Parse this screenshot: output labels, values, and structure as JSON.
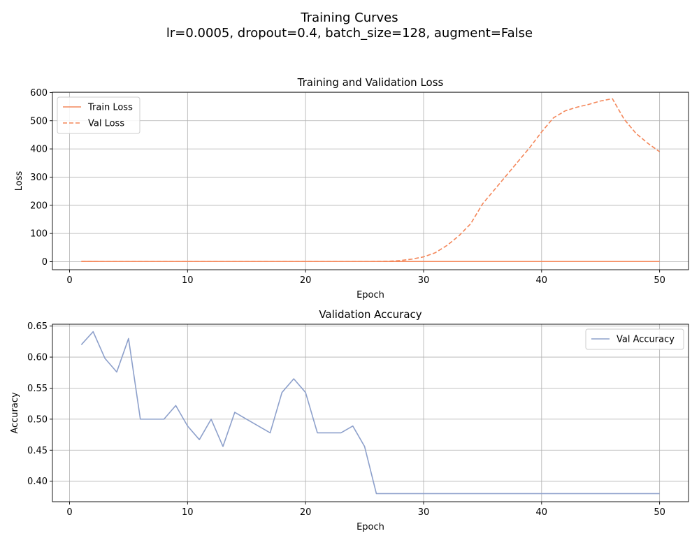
{
  "figure": {
    "suptitle_line1": "Training Curves",
    "suptitle_line2": "lr=0.0005, dropout=0.4, batch_size=128, augment=False"
  },
  "colors": {
    "loss": "#f4875a",
    "accuracy": "#8da0cb",
    "grid": "#b0b0b0"
  },
  "chart_data": [
    {
      "type": "line",
      "title": "Training and Validation Loss",
      "xlabel": "Epoch",
      "ylabel": "Loss",
      "xlim": [
        -1.45,
        52.45
      ],
      "ylim": [
        -28.5,
        601
      ],
      "xticks": [
        0,
        10,
        20,
        30,
        40,
        50
      ],
      "yticks": [
        0,
        100,
        200,
        300,
        400,
        500,
        600
      ],
      "grid": true,
      "legend_position": "upper-left",
      "x": [
        1,
        2,
        3,
        4,
        5,
        6,
        7,
        8,
        9,
        10,
        11,
        12,
        13,
        14,
        15,
        16,
        17,
        18,
        19,
        20,
        21,
        22,
        23,
        24,
        25,
        26,
        27,
        28,
        29,
        30,
        31,
        32,
        33,
        34,
        35,
        36,
        37,
        38,
        39,
        40,
        41,
        42,
        43,
        44,
        45,
        46,
        47,
        48,
        49,
        50
      ],
      "series": [
        {
          "name": "Train Loss",
          "style": "solid",
          "values": [
            0.68,
            0.66,
            0.65,
            0.65,
            0.64,
            0.64,
            0.64,
            0.63,
            0.63,
            0.63,
            0.63,
            0.63,
            0.63,
            0.63,
            0.63,
            0.63,
            0.63,
            0.63,
            0.63,
            0.63,
            0.63,
            0.63,
            0.63,
            0.63,
            0.63,
            0.63,
            0.63,
            0.63,
            0.63,
            0.63,
            0.63,
            0.63,
            0.63,
            0.63,
            0.63,
            0.63,
            0.63,
            0.63,
            0.63,
            0.63,
            0.63,
            0.63,
            0.63,
            0.63,
            0.63,
            0.63,
            0.63,
            0.63,
            0.63,
            0.63
          ]
        },
        {
          "name": "Val Loss",
          "style": "dashed",
          "values": [
            0.7,
            0.7,
            0.7,
            0.7,
            0.7,
            0.7,
            0.7,
            0.7,
            0.7,
            0.7,
            0.7,
            0.7,
            0.7,
            0.7,
            0.7,
            0.7,
            0.7,
            0.7,
            0.7,
            0.7,
            0.7,
            0.7,
            0.7,
            0.7,
            0.8,
            1.0,
            1.5,
            4,
            9,
            17,
            32,
            58,
            92,
            135,
            205,
            255,
            305,
            355,
            405,
            460,
            510,
            535,
            548,
            558,
            570,
            578,
            505,
            455,
            420,
            390
          ]
        }
      ]
    },
    {
      "type": "line",
      "title": "Validation Accuracy",
      "xlabel": "Epoch",
      "ylabel": "Accuracy",
      "xlim": [
        -1.45,
        52.45
      ],
      "ylim": [
        0.367,
        0.653
      ],
      "xticks": [
        0,
        10,
        20,
        30,
        40,
        50
      ],
      "yticks": [
        0.4,
        0.45,
        0.5,
        0.55,
        0.6,
        0.65
      ],
      "grid": true,
      "legend_position": "upper-right",
      "x": [
        1,
        2,
        3,
        4,
        5,
        6,
        7,
        8,
        9,
        10,
        11,
        12,
        13,
        14,
        15,
        16,
        17,
        18,
        19,
        20,
        21,
        22,
        23,
        24,
        25,
        26,
        27,
        28,
        29,
        30,
        31,
        32,
        33,
        34,
        35,
        36,
        37,
        38,
        39,
        40,
        41,
        42,
        43,
        44,
        45,
        46,
        47,
        48,
        49,
        50
      ],
      "series": [
        {
          "name": "Val Accuracy",
          "style": "solid",
          "values": [
            0.62,
            0.641,
            0.598,
            0.576,
            0.63,
            0.5,
            0.5,
            0.5,
            0.522,
            0.489,
            0.467,
            0.5,
            0.456,
            0.511,
            0.5,
            0.489,
            0.478,
            0.543,
            0.565,
            0.543,
            0.478,
            0.478,
            0.478,
            0.489,
            0.456,
            0.38,
            0.38,
            0.38,
            0.38,
            0.38,
            0.38,
            0.38,
            0.38,
            0.38,
            0.38,
            0.38,
            0.38,
            0.38,
            0.38,
            0.38,
            0.38,
            0.38,
            0.38,
            0.38,
            0.38,
            0.38,
            0.38,
            0.38,
            0.38,
            0.38
          ]
        }
      ]
    }
  ]
}
